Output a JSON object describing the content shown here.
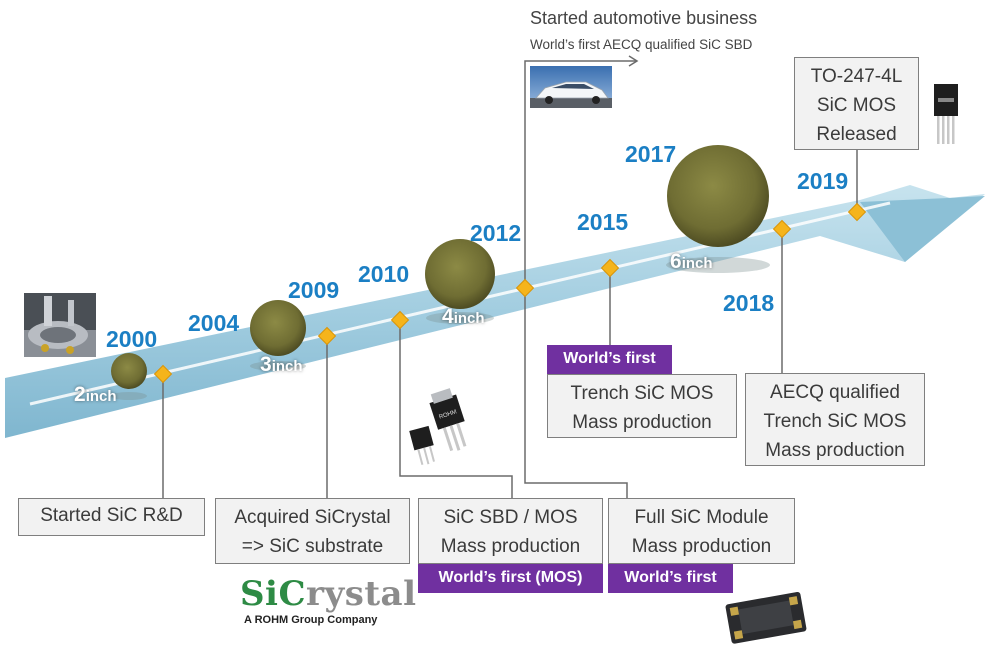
{
  "milestones": [
    {
      "year": "2000",
      "box": [
        "Started SiC R&D"
      ]
    },
    {
      "year": "2004"
    },
    {
      "year": "2009",
      "box": [
        "Acquired SiCrystal",
        "=> SiC substrate"
      ]
    },
    {
      "year": "2010",
      "box": [
        "SiC SBD / MOS",
        "Mass production"
      ],
      "badge": "World’s first (MOS)"
    },
    {
      "year": "2012",
      "box": [
        "Full SiC Module",
        "Mass production"
      ],
      "badge": "World’s first"
    },
    {
      "year": "2015",
      "box": [
        "Trench SiC MOS",
        "Mass production"
      ],
      "badge": "World’s first"
    },
    {
      "year": "2017"
    },
    {
      "year": "2018",
      "box": [
        "AECQ qualified",
        "Trench SiC MOS",
        "Mass production"
      ]
    },
    {
      "year": "2019",
      "box": [
        "TO-247-4L",
        "SiC MOS",
        "Released"
      ]
    }
  ],
  "wafers": [
    {
      "size": "2",
      "unit": "inch"
    },
    {
      "size": "3",
      "unit": "inch"
    },
    {
      "size": "4",
      "unit": "inch"
    },
    {
      "size": "6",
      "unit": "inch"
    }
  ],
  "automotive": {
    "title": "Started automotive business",
    "subtitle": "World’s first AECQ qualified SiC SBD"
  },
  "logo": {
    "brand_si": "SiC",
    "brand_rest": "rystal",
    "tagline": "A ROHM Group Company"
  },
  "device_marking": "ROHM",
  "colors": {
    "year": "#1b7fc4",
    "arrow": "#9dc9dc",
    "marker": "#f5b41b",
    "badge": "#7030a0",
    "wafer": "#7b7a3c"
  }
}
